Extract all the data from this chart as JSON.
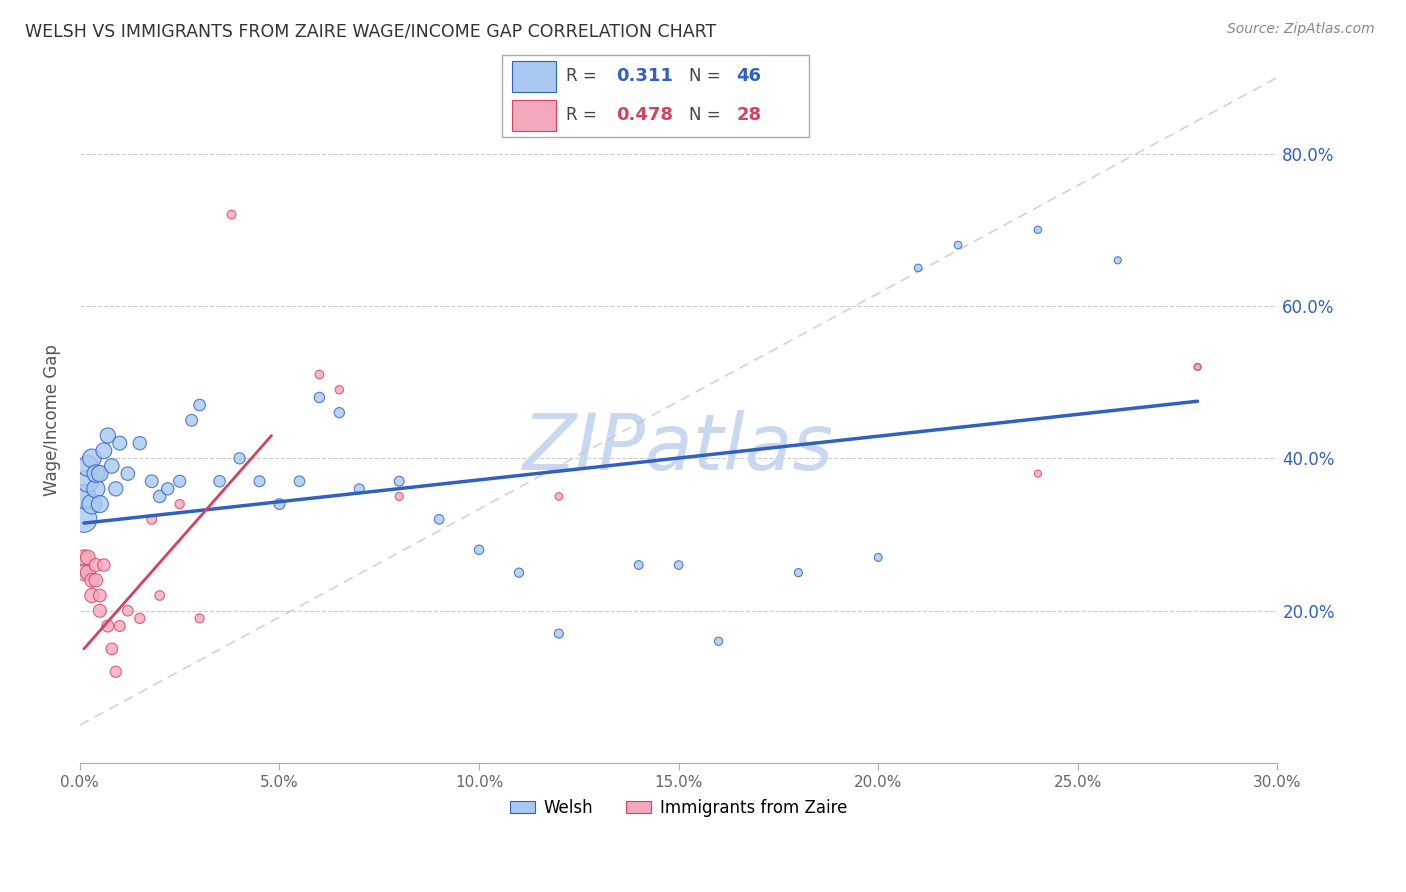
{
  "title": "WELSH VS IMMIGRANTS FROM ZAIRE WAGE/INCOME GAP CORRELATION CHART",
  "source": "Source: ZipAtlas.com",
  "ylabel": "Wage/Income Gap",
  "xlim": [
    0.0,
    0.3
  ],
  "ylim": [
    0.0,
    0.9
  ],
  "yticks": [
    0.2,
    0.4,
    0.6,
    0.8
  ],
  "xticks": [
    0.0,
    0.05,
    0.1,
    0.15,
    0.2,
    0.25,
    0.3
  ],
  "welsh_R": 0.311,
  "welsh_N": 46,
  "zaire_R": 0.478,
  "zaire_N": 28,
  "welsh_color": "#A8C8F0",
  "zaire_color": "#F4A8BC",
  "welsh_line_color": "#3060C0",
  "zaire_line_color": "#D84060",
  "ref_line_color": "#C8C8C8",
  "legend_label_welsh": "Welsh",
  "legend_label_zaire": "Immigrants from Zaire",
  "watermark": "ZIPatlas",
  "watermark_color": "#C8D8F0",
  "welsh_x": [
    0.001,
    0.001,
    0.002,
    0.002,
    0.003,
    0.003,
    0.004,
    0.004,
    0.005,
    0.005,
    0.006,
    0.007,
    0.008,
    0.009,
    0.01,
    0.012,
    0.015,
    0.018,
    0.02,
    0.022,
    0.025,
    0.028,
    0.03,
    0.035,
    0.04,
    0.045,
    0.05,
    0.055,
    0.06,
    0.065,
    0.07,
    0.08,
    0.09,
    0.1,
    0.11,
    0.12,
    0.14,
    0.15,
    0.16,
    0.18,
    0.2,
    0.21,
    0.22,
    0.24,
    0.26,
    0.28
  ],
  "welsh_y": [
    0.32,
    0.35,
    0.37,
    0.39,
    0.34,
    0.4,
    0.36,
    0.38,
    0.34,
    0.38,
    0.41,
    0.43,
    0.39,
    0.36,
    0.42,
    0.38,
    0.42,
    0.37,
    0.35,
    0.36,
    0.37,
    0.45,
    0.47,
    0.37,
    0.4,
    0.37,
    0.34,
    0.37,
    0.48,
    0.46,
    0.36,
    0.37,
    0.32,
    0.28,
    0.25,
    0.17,
    0.26,
    0.26,
    0.16,
    0.25,
    0.27,
    0.65,
    0.68,
    0.7,
    0.66,
    0.52
  ],
  "welsh_size": [
    350,
    300,
    250,
    220,
    200,
    180,
    170,
    160,
    150,
    140,
    130,
    120,
    110,
    105,
    100,
    95,
    90,
    85,
    80,
    78,
    75,
    72,
    70,
    68,
    65,
    62,
    60,
    58,
    56,
    54,
    52,
    50,
    48,
    46,
    44,
    42,
    40,
    38,
    36,
    34,
    32,
    30,
    30,
    28,
    26,
    24
  ],
  "zaire_x": [
    0.001,
    0.001,
    0.002,
    0.002,
    0.003,
    0.003,
    0.004,
    0.004,
    0.005,
    0.005,
    0.006,
    0.007,
    0.008,
    0.009,
    0.01,
    0.012,
    0.015,
    0.018,
    0.02,
    0.025,
    0.03,
    0.038,
    0.06,
    0.065,
    0.08,
    0.12,
    0.24,
    0.28
  ],
  "zaire_y": [
    0.25,
    0.27,
    0.25,
    0.27,
    0.22,
    0.24,
    0.24,
    0.26,
    0.2,
    0.22,
    0.26,
    0.18,
    0.15,
    0.12,
    0.18,
    0.2,
    0.19,
    0.32,
    0.22,
    0.34,
    0.19,
    0.72,
    0.51,
    0.49,
    0.35,
    0.35,
    0.38,
    0.52
  ],
  "zaire_size": [
    130,
    120,
    115,
    110,
    105,
    100,
    95,
    90,
    88,
    85,
    80,
    75,
    70,
    65,
    62,
    58,
    54,
    50,
    48,
    44,
    42,
    40,
    38,
    36,
    34,
    30,
    26,
    24
  ],
  "welsh_trendline": [
    0.001,
    0.28,
    0.315,
    0.475
  ],
  "zaire_trendline": [
    0.001,
    0.048,
    0.15,
    0.43
  ]
}
